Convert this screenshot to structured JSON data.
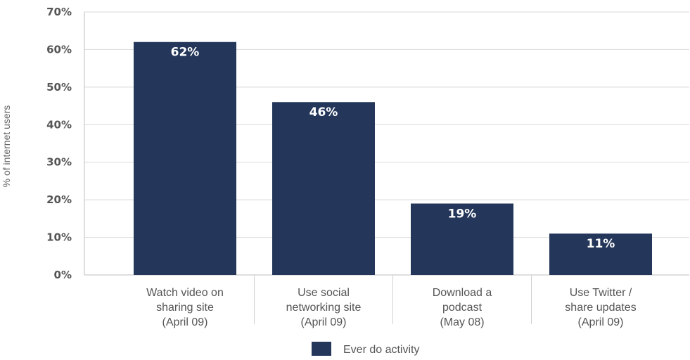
{
  "chart_data": {
    "type": "bar",
    "title": "",
    "xlabel": "",
    "ylabel": "% of internet users",
    "ylim": [
      0,
      70
    ],
    "yticks": [
      "0%",
      "10%",
      "20%",
      "30%",
      "40%",
      "50%",
      "60%",
      "70%"
    ],
    "grid": true,
    "legend_position": "bottom",
    "categories": [
      [
        "Watch video on",
        "sharing site",
        "(April 09)"
      ],
      [
        "Use social",
        "networking site",
        "(April 09)"
      ],
      [
        "Download a",
        "podcast",
        "(May 08)"
      ],
      [
        "Use Twitter /",
        "share updates",
        "(April 09)"
      ]
    ],
    "series": [
      {
        "name": "Ever do activity",
        "color": "#24375a",
        "values": [
          62,
          46,
          19,
          11
        ],
        "labels": [
          "62%",
          "46%",
          "19%",
          "11%"
        ]
      }
    ]
  }
}
